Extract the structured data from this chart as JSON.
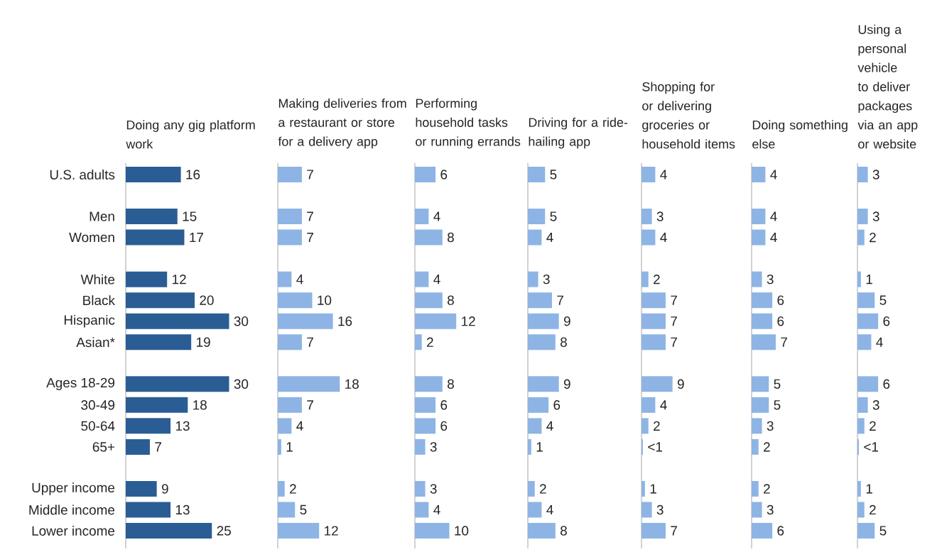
{
  "chart_data": [
    {
      "type": "bar",
      "orientation": "horizontal",
      "title": "Doing any gig platform work",
      "color": "#2a5d94",
      "tick_labels": "y",
      "data_labels": true,
      "categories": [
        "U.S. adults",
        null,
        "Men",
        "Women",
        null,
        "White",
        "Black",
        "Hispanic",
        "Asian*",
        null,
        "Ages 18-29",
        "30-49",
        "50-64",
        "65+",
        null,
        "Upper income",
        "Middle income",
        "Lower income"
      ],
      "values": [
        16,
        null,
        15,
        17,
        null,
        12,
        20,
        30,
        19,
        null,
        30,
        18,
        13,
        7,
        null,
        9,
        13,
        25
      ]
    },
    {
      "type": "bar",
      "orientation": "horizontal",
      "title": "Making deliveries from a restaurant or store for a delivery app",
      "color": "#8db4e4",
      "tick_labels": false,
      "data_labels": true,
      "values": [
        7,
        null,
        7,
        7,
        null,
        4,
        10,
        16,
        7,
        null,
        18,
        7,
        4,
        1,
        null,
        2,
        5,
        12
      ]
    },
    {
      "type": "bar",
      "orientation": "horizontal",
      "title": "Performing household tasks or running errands",
      "color": "#8db4e4",
      "tick_labels": false,
      "data_labels": true,
      "values": [
        6,
        null,
        4,
        8,
        null,
        4,
        8,
        12,
        2,
        null,
        8,
        6,
        6,
        3,
        null,
        3,
        4,
        10
      ]
    },
    {
      "type": "bar",
      "orientation": "horizontal",
      "title": "Driving for a ride-hailing app",
      "color": "#8db4e4",
      "tick_labels": false,
      "data_labels": true,
      "values": [
        5,
        null,
        5,
        4,
        null,
        3,
        7,
        9,
        8,
        null,
        9,
        6,
        4,
        1,
        null,
        2,
        4,
        8
      ]
    },
    {
      "type": "bar",
      "orientation": "horizontal",
      "title": "Shopping for or delivering groceries or household items",
      "color": "#8db4e4",
      "tick_labels": false,
      "values": [
        4,
        null,
        3,
        4,
        null,
        2,
        7,
        7,
        7,
        null,
        9,
        4,
        2,
        0.4,
        null,
        1,
        3,
        7
      ],
      "value_labels": [
        "4",
        null,
        "3",
        "4",
        null,
        "2",
        "7",
        "7",
        "7",
        null,
        "9",
        "4",
        "2",
        "<1",
        null,
        "1",
        "3",
        "7"
      ]
    },
    {
      "type": "bar",
      "orientation": "horizontal",
      "title": "Doing something else",
      "color": "#8db4e4",
      "tick_labels": false,
      "data_labels": true,
      "values": [
        4,
        null,
        4,
        4,
        null,
        3,
        6,
        6,
        7,
        null,
        5,
        5,
        3,
        2,
        null,
        2,
        3,
        6
      ]
    },
    {
      "type": "bar",
      "orientation": "horizontal",
      "title": "Using a personal vehicle to deliver packages via an app or website",
      "color": "#8db4e4",
      "tick_labels": false,
      "values": [
        3,
        null,
        3,
        2,
        null,
        1,
        5,
        6,
        4,
        null,
        6,
        3,
        2,
        0.4,
        null,
        1,
        2,
        5
      ],
      "value_labels": [
        "3",
        null,
        "3",
        "2",
        null,
        "1",
        "5",
        "6",
        "4",
        null,
        "6",
        "3",
        "2",
        "<1",
        null,
        "1",
        "2",
        "5"
      ]
    }
  ]
}
